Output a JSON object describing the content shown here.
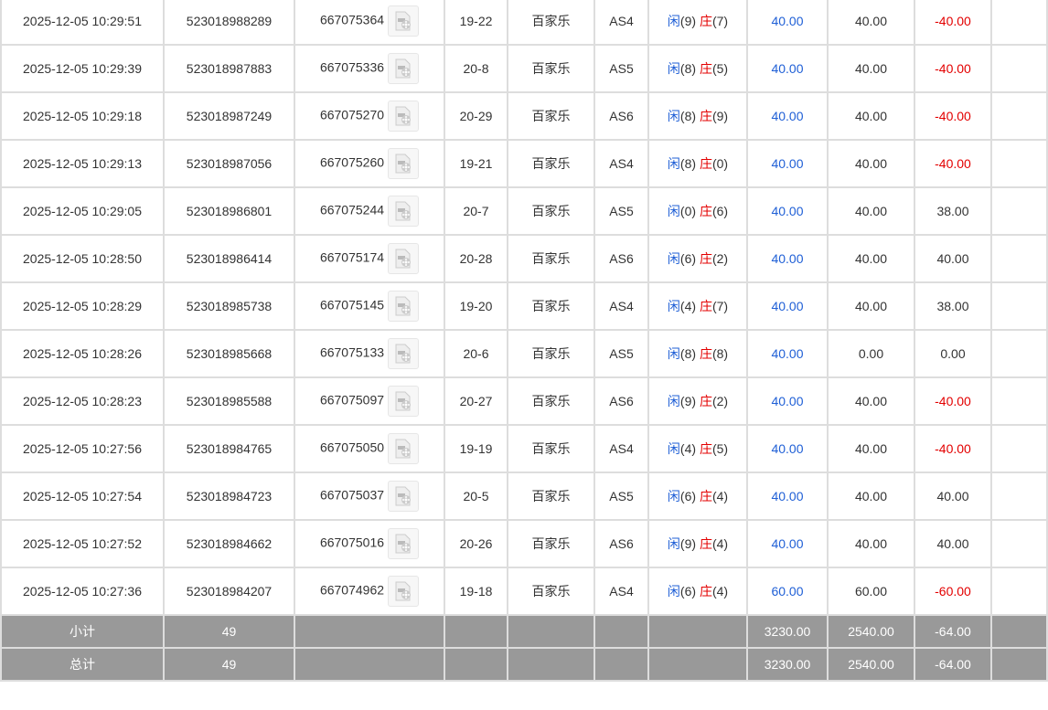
{
  "colors": {
    "player": "#1f5fd6",
    "banker": "#e30000",
    "negative": "#e30000",
    "bet": "#1f5fd6",
    "summary_bg": "#999999"
  },
  "rows": [
    {
      "time": "2025-12-05 10:29:51",
      "order": "523018988289",
      "round": "667075364",
      "shoe": "19-22",
      "game": "百家乐",
      "table": "AS4",
      "player_label": "闲",
      "player": "(9)",
      "banker_label": "庄",
      "banker": "(7)",
      "bet": "40.00",
      "valid": "40.00",
      "result": "-40.00"
    },
    {
      "time": "2025-12-05 10:29:39",
      "order": "523018987883",
      "round": "667075336",
      "shoe": "20-8",
      "game": "百家乐",
      "table": "AS5",
      "player_label": "闲",
      "player": "(8)",
      "banker_label": "庄",
      "banker": "(5)",
      "bet": "40.00",
      "valid": "40.00",
      "result": "-40.00"
    },
    {
      "time": "2025-12-05 10:29:18",
      "order": "523018987249",
      "round": "667075270",
      "shoe": "20-29",
      "game": "百家乐",
      "table": "AS6",
      "player_label": "闲",
      "player": "(8)",
      "banker_label": "庄",
      "banker": "(9)",
      "bet": "40.00",
      "valid": "40.00",
      "result": "-40.00"
    },
    {
      "time": "2025-12-05 10:29:13",
      "order": "523018987056",
      "round": "667075260",
      "shoe": "19-21",
      "game": "百家乐",
      "table": "AS4",
      "player_label": "闲",
      "player": "(8)",
      "banker_label": "庄",
      "banker": "(0)",
      "bet": "40.00",
      "valid": "40.00",
      "result": "-40.00"
    },
    {
      "time": "2025-12-05 10:29:05",
      "order": "523018986801",
      "round": "667075244",
      "shoe": "20-7",
      "game": "百家乐",
      "table": "AS5",
      "player_label": "闲",
      "player": "(0)",
      "banker_label": "庄",
      "banker": "(6)",
      "bet": "40.00",
      "valid": "40.00",
      "result": "38.00"
    },
    {
      "time": "2025-12-05 10:28:50",
      "order": "523018986414",
      "round": "667075174",
      "shoe": "20-28",
      "game": "百家乐",
      "table": "AS6",
      "player_label": "闲",
      "player": "(6)",
      "banker_label": "庄",
      "banker": "(2)",
      "bet": "40.00",
      "valid": "40.00",
      "result": "40.00"
    },
    {
      "time": "2025-12-05 10:28:29",
      "order": "523018985738",
      "round": "667075145",
      "shoe": "19-20",
      "game": "百家乐",
      "table": "AS4",
      "player_label": "闲",
      "player": "(4)",
      "banker_label": "庄",
      "banker": "(7)",
      "bet": "40.00",
      "valid": "40.00",
      "result": "38.00"
    },
    {
      "time": "2025-12-05 10:28:26",
      "order": "523018985668",
      "round": "667075133",
      "shoe": "20-6",
      "game": "百家乐",
      "table": "AS5",
      "player_label": "闲",
      "player": "(8)",
      "banker_label": "庄",
      "banker": "(8)",
      "bet": "40.00",
      "valid": "0.00",
      "result": "0.00"
    },
    {
      "time": "2025-12-05 10:28:23",
      "order": "523018985588",
      "round": "667075097",
      "shoe": "20-27",
      "game": "百家乐",
      "table": "AS6",
      "player_label": "闲",
      "player": "(9)",
      "banker_label": "庄",
      "banker": "(2)",
      "bet": "40.00",
      "valid": "40.00",
      "result": "-40.00"
    },
    {
      "time": "2025-12-05 10:27:56",
      "order": "523018984765",
      "round": "667075050",
      "shoe": "19-19",
      "game": "百家乐",
      "table": "AS4",
      "player_label": "闲",
      "player": "(4)",
      "banker_label": "庄",
      "banker": "(5)",
      "bet": "40.00",
      "valid": "40.00",
      "result": "-40.00"
    },
    {
      "time": "2025-12-05 10:27:54",
      "order": "523018984723",
      "round": "667075037",
      "shoe": "20-5",
      "game": "百家乐",
      "table": "AS5",
      "player_label": "闲",
      "player": "(6)",
      "banker_label": "庄",
      "banker": "(4)",
      "bet": "40.00",
      "valid": "40.00",
      "result": "40.00"
    },
    {
      "time": "2025-12-05 10:27:52",
      "order": "523018984662",
      "round": "667075016",
      "shoe": "20-26",
      "game": "百家乐",
      "table": "AS6",
      "player_label": "闲",
      "player": "(9)",
      "banker_label": "庄",
      "banker": "(4)",
      "bet": "40.00",
      "valid": "40.00",
      "result": "40.00"
    },
    {
      "time": "2025-12-05 10:27:36",
      "order": "523018984207",
      "round": "667074962",
      "shoe": "19-18",
      "game": "百家乐",
      "table": "AS4",
      "player_label": "闲",
      "player": "(6)",
      "banker_label": "庄",
      "banker": "(4)",
      "bet": "60.00",
      "valid": "60.00",
      "result": "-60.00"
    }
  ],
  "subtotal": {
    "label": "小计",
    "count": "49",
    "bet": "3230.00",
    "valid": "2540.00",
    "result": "-64.00"
  },
  "total": {
    "label": "总计",
    "count": "49",
    "bet": "3230.00",
    "valid": "2540.00",
    "result": "-64.00"
  }
}
